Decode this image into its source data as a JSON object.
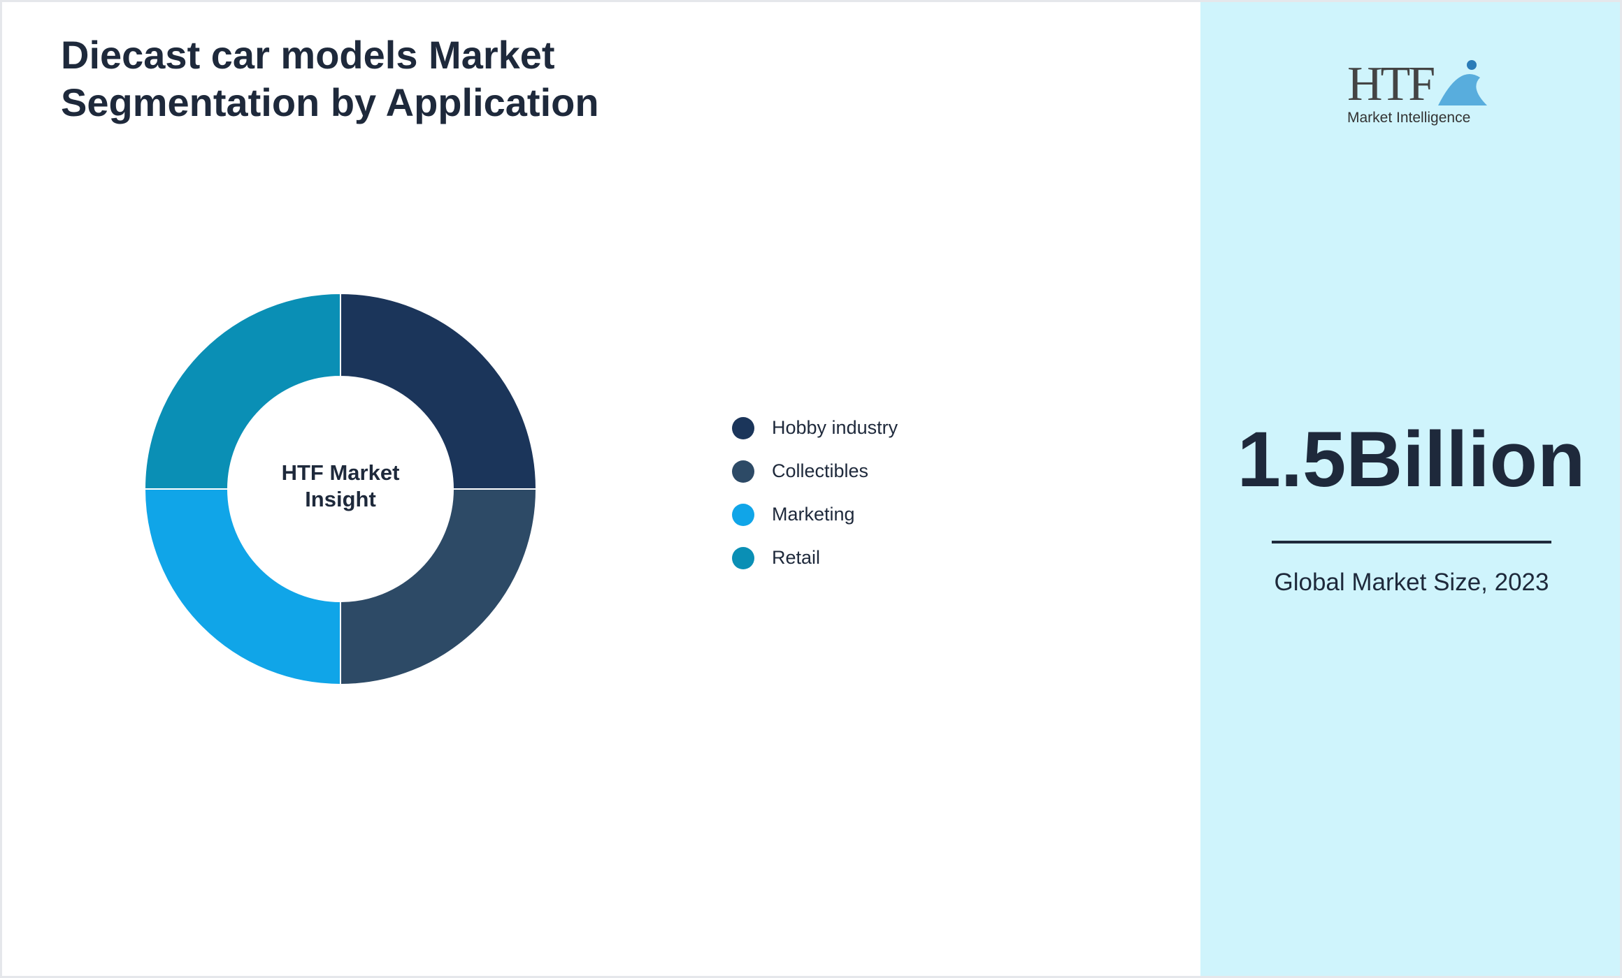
{
  "chart_data": {
    "type": "pie",
    "title": "Diecast car models Market Segmentation by Application",
    "center_label": "HTF Market Insight",
    "categories": [
      "Hobby industry",
      "Collectibles",
      "Marketing",
      "Retail"
    ],
    "values": [
      25,
      25,
      25,
      25
    ],
    "colors": [
      "#1b355a",
      "#2d4a66",
      "#10a5e8",
      "#0a8fb5"
    ],
    "donut": true
  },
  "side_panel": {
    "logo": {
      "mark": "HTF",
      "text": "Market Intelligence"
    },
    "value": "1.5Billion",
    "caption": "Global Market Size, 2023"
  }
}
